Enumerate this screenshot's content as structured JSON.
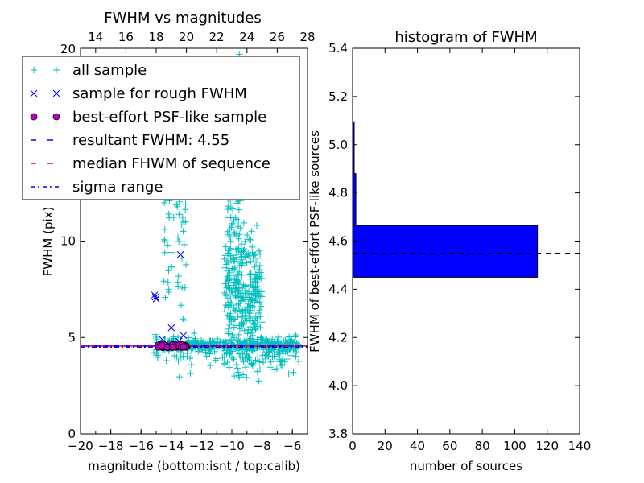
{
  "chart_data": [
    {
      "type": "scatter",
      "title": "FWHM vs magnitudes",
      "xlabel": "magnitude (bottom:isnt / top:calib)",
      "ylabel": "FWHM (pix)",
      "xlim": [
        -20,
        -5
      ],
      "ylim": [
        0,
        20
      ],
      "top_xlim": [
        13,
        28
      ],
      "x_ticks": [
        "−20",
        "−18",
        "−16",
        "−14",
        "−12",
        "−10",
        "−8",
        "−6"
      ],
      "x_tick_values": [
        -20,
        -18,
        -16,
        -14,
        -12,
        -10,
        -8,
        -6
      ],
      "top_x_ticks": [
        "14",
        "16",
        "18",
        "20",
        "22",
        "24",
        "26",
        "28"
      ],
      "top_x_tick_values": [
        14,
        16,
        18,
        20,
        22,
        24,
        26,
        28
      ],
      "y_ticks": [
        "0",
        "5",
        "10"
      ],
      "y_tick_values": [
        0,
        5,
        10
      ],
      "top_tick_20": "20",
      "legend_placement": "upper-left",
      "legend": [
        {
          "label": "all sample",
          "marker": "+",
          "color": "#00bfbf"
        },
        {
          "label": "sample for rough FWHM",
          "marker": "x",
          "color": "#0000ff"
        },
        {
          "label": "best-effort PSF-like sample",
          "marker": "o",
          "color": "#bf00bf"
        },
        {
          "label": "resultant FWHM: 4.55",
          "line": "dashed",
          "color": "#0000ff"
        },
        {
          "label": "median FHWM of sequence",
          "line": "dashed",
          "color": "#ff0000"
        },
        {
          "label": "sigma range",
          "line": "dashdot",
          "color": "#0000ff"
        }
      ],
      "resultant_fwhm": 4.55,
      "sigma_range": [
        4.5,
        4.6
      ],
      "series": [
        {
          "name": "all sample",
          "marker": "+",
          "color": "#00bfbf",
          "clusters": [
            {
              "x_range": [
                -15,
                -5.5
              ],
              "y_mean": 4.6,
              "y_sd": 0.15,
              "count": 380
            },
            {
              "x_range": [
                -10.5,
                -8
              ],
              "y_mean": 7.2,
              "y_sd": 1.5,
              "count": 300
            },
            {
              "x_range": [
                -10.3,
                -9.3
              ],
              "y_mean": 11.5,
              "y_sd": 3.5,
              "count": 110
            },
            {
              "x_range": [
                -14.6,
                -13
              ],
              "y_mean": 12.0,
              "y_sd": 3.5,
              "count": 90
            },
            {
              "x_range": [
                -15.2,
                -5.5
              ],
              "y_mean": 4.3,
              "y_sd": 0.4,
              "count": 110
            },
            {
              "x_range": [
                -10,
                -6.5
              ],
              "y_mean": 3.7,
              "y_sd": 0.35,
              "count": 30
            }
          ]
        },
        {
          "name": "sample for rough FWHM",
          "marker": "x",
          "color": "#0000ff",
          "points": [
            [
              -15.1,
              7.2
            ],
            [
              -15.0,
              7.0
            ],
            [
              -15.05,
              7.1
            ],
            [
              -14.0,
              5.5
            ],
            [
              -13.2,
              5.1
            ],
            [
              -13.4,
              9.3
            ],
            [
              -14.6,
              4.9
            ],
            [
              -14.3,
              4.7
            ],
            [
              -13.8,
              4.6
            ],
            [
              -13.5,
              4.8
            ],
            [
              -14.1,
              4.5
            ]
          ]
        },
        {
          "name": "best-effort PSF-like sample",
          "marker": "o",
          "color": "#bf00bf",
          "x_range": [
            -14.9,
            -13.0
          ],
          "y_range": [
            4.47,
            4.63
          ],
          "count": 45
        }
      ]
    },
    {
      "type": "bar",
      "orientation": "horizontal",
      "title": "histogram of FWHM",
      "xlabel": "number of sources",
      "ylabel": "FWHM of best-effort PSF-like sources",
      "xlim": [
        0,
        140
      ],
      "ylim": [
        3.8,
        5.4
      ],
      "x_ticks": [
        "0",
        "20",
        "40",
        "60",
        "80",
        "100",
        "120",
        "140"
      ],
      "x_tick_values": [
        0,
        20,
        40,
        60,
        80,
        100,
        120,
        140
      ],
      "y_ticks": [
        "3.8",
        "4.0",
        "4.2",
        "4.4",
        "4.6",
        "4.8",
        "5.0",
        "5.2",
        "5.4"
      ],
      "y_tick_values": [
        3.8,
        4.0,
        4.2,
        4.4,
        4.6,
        4.8,
        5.0,
        5.2,
        5.4
      ],
      "bin_edges": [
        4.45,
        4.665,
        4.88,
        5.095
      ],
      "values": [
        114,
        2,
        1
      ],
      "bar_color": "#0000ff",
      "resultant_fwhm": 4.55
    }
  ]
}
